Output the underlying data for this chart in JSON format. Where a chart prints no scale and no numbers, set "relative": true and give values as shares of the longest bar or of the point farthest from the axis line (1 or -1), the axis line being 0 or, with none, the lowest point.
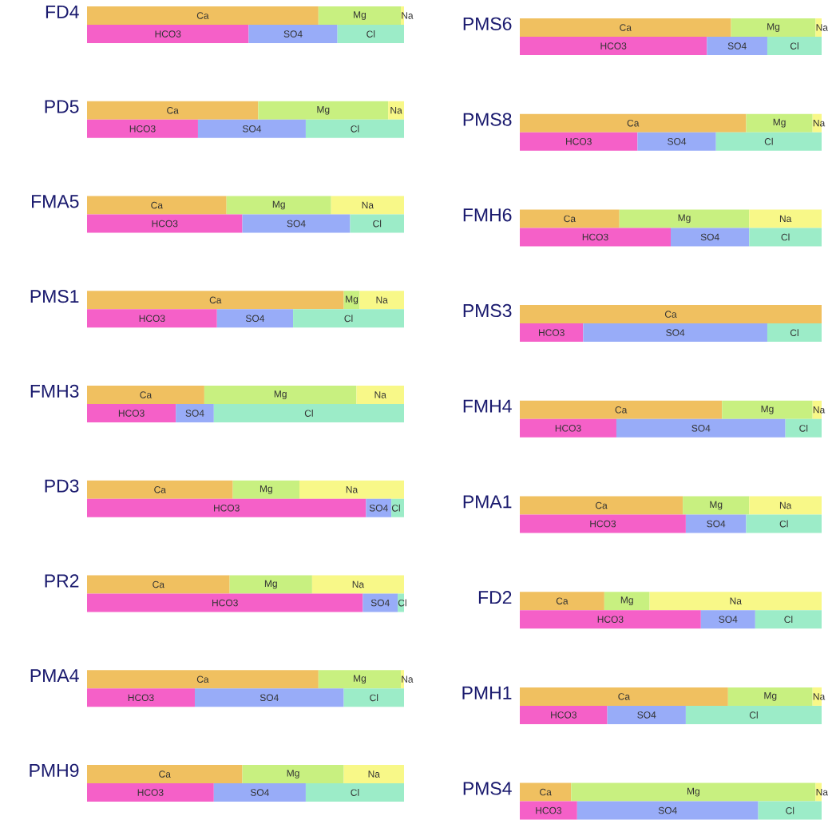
{
  "chart_data": [
    {
      "type": "bar",
      "orientation": "horizontal",
      "stacked": true,
      "relative": true,
      "title": "FD4",
      "categories": [
        null,
        null
      ],
      "series": [
        {
          "name": "Ca",
          "color": "#f0c060",
          "values": [
            0.73,
            null
          ]
        },
        {
          "name": "Mg",
          "color": "#c8f080",
          "values": [
            0.26,
            null
          ]
        },
        {
          "name": "Na",
          "color": "#f8f888",
          "values": [
            0.01,
            null
          ]
        },
        {
          "name": "HCO3",
          "color": "#f560c8",
          "values": [
            null,
            0.51
          ]
        },
        {
          "name": "SO4",
          "color": "#98acf8",
          "values": [
            null,
            0.28
          ]
        },
        {
          "name": "Cl",
          "color": "#9cecc8",
          "values": [
            null,
            0.21
          ]
        }
      ]
    },
    {
      "type": "bar",
      "orientation": "horizontal",
      "stacked": true,
      "relative": true,
      "title": "PMS6",
      "categories": [
        null,
        null
      ],
      "series": [
        {
          "name": "Ca",
          "color": "#f0c060",
          "values": [
            0.7,
            null
          ]
        },
        {
          "name": "Mg",
          "color": "#c8f080",
          "values": [
            0.28,
            null
          ]
        },
        {
          "name": "Na",
          "color": "#f8f888",
          "values": [
            0.02,
            null
          ]
        },
        {
          "name": "HCO3",
          "color": "#f560c8",
          "values": [
            null,
            0.62
          ]
        },
        {
          "name": "SO4",
          "color": "#98acf8",
          "values": [
            null,
            0.2
          ]
        },
        {
          "name": "Cl",
          "color": "#9cecc8",
          "values": [
            null,
            0.18
          ]
        }
      ]
    },
    {
      "type": "bar",
      "orientation": "horizontal",
      "stacked": true,
      "relative": true,
      "title": "PD5",
      "categories": [
        null,
        null
      ],
      "series": [
        {
          "name": "Ca",
          "color": "#f0c060",
          "values": [
            0.54,
            null
          ]
        },
        {
          "name": "Mg",
          "color": "#c8f080",
          "values": [
            0.41,
            null
          ]
        },
        {
          "name": "Na",
          "color": "#f8f888",
          "values": [
            0.05,
            null
          ]
        },
        {
          "name": "HCO3",
          "color": "#f560c8",
          "values": [
            null,
            0.35
          ]
        },
        {
          "name": "SO4",
          "color": "#98acf8",
          "values": [
            null,
            0.34
          ]
        },
        {
          "name": "Cl",
          "color": "#9cecc8",
          "values": [
            null,
            0.31
          ]
        }
      ]
    },
    {
      "type": "bar",
      "orientation": "horizontal",
      "stacked": true,
      "relative": true,
      "title": "PMS8",
      "categories": [
        null,
        null
      ],
      "series": [
        {
          "name": "Ca",
          "color": "#f0c060",
          "values": [
            0.75,
            null
          ]
        },
        {
          "name": "Mg",
          "color": "#c8f080",
          "values": [
            0.22,
            null
          ]
        },
        {
          "name": "Na",
          "color": "#f8f888",
          "values": [
            0.03,
            null
          ]
        },
        {
          "name": "HCO3",
          "color": "#f560c8",
          "values": [
            null,
            0.39
          ]
        },
        {
          "name": "SO4",
          "color": "#98acf8",
          "values": [
            null,
            0.26
          ]
        },
        {
          "name": "Cl",
          "color": "#9cecc8",
          "values": [
            null,
            0.35
          ]
        }
      ]
    },
    {
      "type": "bar",
      "orientation": "horizontal",
      "stacked": true,
      "relative": true,
      "title": "FMA5",
      "categories": [
        null,
        null
      ],
      "series": [
        {
          "name": "Ca",
          "color": "#f0c060",
          "values": [
            0.44,
            null
          ]
        },
        {
          "name": "Mg",
          "color": "#c8f080",
          "values": [
            0.33,
            null
          ]
        },
        {
          "name": "Na",
          "color": "#f8f888",
          "values": [
            0.23,
            null
          ]
        },
        {
          "name": "HCO3",
          "color": "#f560c8",
          "values": [
            null,
            0.49
          ]
        },
        {
          "name": "SO4",
          "color": "#98acf8",
          "values": [
            null,
            0.34
          ]
        },
        {
          "name": "Cl",
          "color": "#9cecc8",
          "values": [
            null,
            0.17
          ]
        }
      ]
    },
    {
      "type": "bar",
      "orientation": "horizontal",
      "stacked": true,
      "relative": true,
      "title": "FMH6",
      "categories": [
        null,
        null
      ],
      "series": [
        {
          "name": "Ca",
          "color": "#f0c060",
          "values": [
            0.33,
            null
          ]
        },
        {
          "name": "Mg",
          "color": "#c8f080",
          "values": [
            0.43,
            null
          ]
        },
        {
          "name": "Na",
          "color": "#f8f888",
          "values": [
            0.24,
            null
          ]
        },
        {
          "name": "HCO3",
          "color": "#f560c8",
          "values": [
            null,
            0.5
          ]
        },
        {
          "name": "SO4",
          "color": "#98acf8",
          "values": [
            null,
            0.26
          ]
        },
        {
          "name": "Cl",
          "color": "#9cecc8",
          "values": [
            null,
            0.24
          ]
        }
      ]
    },
    {
      "type": "bar",
      "orientation": "horizontal",
      "stacked": true,
      "relative": true,
      "title": "PMS1",
      "categories": [
        null,
        null
      ],
      "series": [
        {
          "name": "Ca",
          "color": "#f0c060",
          "values": [
            0.81,
            null
          ]
        },
        {
          "name": "Mg",
          "color": "#c8f080",
          "values": [
            0.05,
            null
          ]
        },
        {
          "name": "Na",
          "color": "#f8f888",
          "values": [
            0.14,
            null
          ]
        },
        {
          "name": "HCO3",
          "color": "#f560c8",
          "values": [
            null,
            0.41
          ]
        },
        {
          "name": "SO4",
          "color": "#98acf8",
          "values": [
            null,
            0.24
          ]
        },
        {
          "name": "Cl",
          "color": "#9cecc8",
          "values": [
            null,
            0.35
          ]
        }
      ]
    },
    {
      "type": "bar",
      "orientation": "horizontal",
      "stacked": true,
      "relative": true,
      "title": "PMS3",
      "categories": [
        null,
        null
      ],
      "series": [
        {
          "name": "Ca",
          "color": "#f0c060",
          "values": [
            1.0,
            null
          ]
        },
        {
          "name": "HCO3",
          "color": "#f560c8",
          "values": [
            null,
            0.21
          ]
        },
        {
          "name": "SO4",
          "color": "#98acf8",
          "values": [
            null,
            0.61
          ]
        },
        {
          "name": "Cl",
          "color": "#9cecc8",
          "values": [
            null,
            0.18
          ]
        }
      ]
    },
    {
      "type": "bar",
      "orientation": "horizontal",
      "stacked": true,
      "relative": true,
      "title": "FMH3",
      "categories": [
        null,
        null
      ],
      "series": [
        {
          "name": "Ca",
          "color": "#f0c060",
          "values": [
            0.37,
            null
          ]
        },
        {
          "name": "Mg",
          "color": "#c8f080",
          "values": [
            0.48,
            null
          ]
        },
        {
          "name": "Na",
          "color": "#f8f888",
          "values": [
            0.15,
            null
          ]
        },
        {
          "name": "HCO3",
          "color": "#f560c8",
          "values": [
            null,
            0.28
          ]
        },
        {
          "name": "SO4",
          "color": "#98acf8",
          "values": [
            null,
            0.12
          ]
        },
        {
          "name": "Cl",
          "color": "#9cecc8",
          "values": [
            null,
            0.6
          ]
        }
      ]
    },
    {
      "type": "bar",
      "orientation": "horizontal",
      "stacked": true,
      "relative": true,
      "title": "FMH4",
      "categories": [
        null,
        null
      ],
      "series": [
        {
          "name": "Ca",
          "color": "#f0c060",
          "values": [
            0.67,
            null
          ]
        },
        {
          "name": "Mg",
          "color": "#c8f080",
          "values": [
            0.3,
            null
          ]
        },
        {
          "name": "Na",
          "color": "#f8f888",
          "values": [
            0.03,
            null
          ]
        },
        {
          "name": "HCO3",
          "color": "#f560c8",
          "values": [
            null,
            0.32
          ]
        },
        {
          "name": "SO4",
          "color": "#98acf8",
          "values": [
            null,
            0.56
          ]
        },
        {
          "name": "Cl",
          "color": "#9cecc8",
          "values": [
            null,
            0.12
          ]
        }
      ]
    },
    {
      "type": "bar",
      "orientation": "horizontal",
      "stacked": true,
      "relative": true,
      "title": "PD3",
      "categories": [
        null,
        null
      ],
      "series": [
        {
          "name": "Ca",
          "color": "#f0c060",
          "values": [
            0.46,
            null
          ]
        },
        {
          "name": "Mg",
          "color": "#c8f080",
          "values": [
            0.21,
            null
          ]
        },
        {
          "name": "Na",
          "color": "#f8f888",
          "values": [
            0.33,
            null
          ]
        },
        {
          "name": "HCO3",
          "color": "#f560c8",
          "values": [
            null,
            0.88
          ]
        },
        {
          "name": "SO4",
          "color": "#98acf8",
          "values": [
            null,
            0.08
          ]
        },
        {
          "name": "Cl",
          "color": "#9cecc8",
          "values": [
            null,
            0.04
          ]
        }
      ]
    },
    {
      "type": "bar",
      "orientation": "horizontal",
      "stacked": true,
      "relative": true,
      "title": "PMA1",
      "categories": [
        null,
        null
      ],
      "series": [
        {
          "name": "Ca",
          "color": "#f0c060",
          "values": [
            0.54,
            null
          ]
        },
        {
          "name": "Mg",
          "color": "#c8f080",
          "values": [
            0.22,
            null
          ]
        },
        {
          "name": "Na",
          "color": "#f8f888",
          "values": [
            0.24,
            null
          ]
        },
        {
          "name": "HCO3",
          "color": "#f560c8",
          "values": [
            null,
            0.55
          ]
        },
        {
          "name": "SO4",
          "color": "#98acf8",
          "values": [
            null,
            0.2
          ]
        },
        {
          "name": "Cl",
          "color": "#9cecc8",
          "values": [
            null,
            0.25
          ]
        }
      ]
    },
    {
      "type": "bar",
      "orientation": "horizontal",
      "stacked": true,
      "relative": true,
      "title": "PR2",
      "categories": [
        null,
        null
      ],
      "series": [
        {
          "name": "Ca",
          "color": "#f0c060",
          "values": [
            0.45,
            null
          ]
        },
        {
          "name": "Mg",
          "color": "#c8f080",
          "values": [
            0.26,
            null
          ]
        },
        {
          "name": "Na",
          "color": "#f8f888",
          "values": [
            0.29,
            null
          ]
        },
        {
          "name": "HCO3",
          "color": "#f560c8",
          "values": [
            null,
            0.87
          ]
        },
        {
          "name": "SO4",
          "color": "#98acf8",
          "values": [
            null,
            0.11
          ]
        },
        {
          "name": "Cl",
          "color": "#9cecc8",
          "values": [
            null,
            0.02
          ]
        }
      ]
    },
    {
      "type": "bar",
      "orientation": "horizontal",
      "stacked": true,
      "relative": true,
      "title": "FD2",
      "categories": [
        null,
        null
      ],
      "series": [
        {
          "name": "Ca",
          "color": "#f0c060",
          "values": [
            0.28,
            null
          ]
        },
        {
          "name": "Mg",
          "color": "#c8f080",
          "values": [
            0.15,
            null
          ]
        },
        {
          "name": "Na",
          "color": "#f8f888",
          "values": [
            0.57,
            null
          ]
        },
        {
          "name": "HCO3",
          "color": "#f560c8",
          "values": [
            null,
            0.6
          ]
        },
        {
          "name": "SO4",
          "color": "#98acf8",
          "values": [
            null,
            0.18
          ]
        },
        {
          "name": "Cl",
          "color": "#9cecc8",
          "values": [
            null,
            0.22
          ]
        }
      ]
    },
    {
      "type": "bar",
      "orientation": "horizontal",
      "stacked": true,
      "relative": true,
      "title": "PMA4",
      "categories": [
        null,
        null
      ],
      "series": [
        {
          "name": "Ca",
          "color": "#f0c060",
          "values": [
            0.73,
            null
          ]
        },
        {
          "name": "Mg",
          "color": "#c8f080",
          "values": [
            0.26,
            null
          ]
        },
        {
          "name": "Na",
          "color": "#f8f888",
          "values": [
            0.01,
            null
          ]
        },
        {
          "name": "HCO3",
          "color": "#f560c8",
          "values": [
            null,
            0.34
          ]
        },
        {
          "name": "SO4",
          "color": "#98acf8",
          "values": [
            null,
            0.47
          ]
        },
        {
          "name": "Cl",
          "color": "#9cecc8",
          "values": [
            null,
            0.19
          ]
        }
      ]
    },
    {
      "type": "bar",
      "orientation": "horizontal",
      "stacked": true,
      "relative": true,
      "title": "PMH1",
      "categories": [
        null,
        null
      ],
      "series": [
        {
          "name": "Ca",
          "color": "#f0c060",
          "values": [
            0.69,
            null
          ]
        },
        {
          "name": "Mg",
          "color": "#c8f080",
          "values": [
            0.28,
            null
          ]
        },
        {
          "name": "Na",
          "color": "#f8f888",
          "values": [
            0.03,
            null
          ]
        },
        {
          "name": "HCO3",
          "color": "#f560c8",
          "values": [
            null,
            0.29
          ]
        },
        {
          "name": "SO4",
          "color": "#98acf8",
          "values": [
            null,
            0.26
          ]
        },
        {
          "name": "Cl",
          "color": "#9cecc8",
          "values": [
            null,
            0.45
          ]
        }
      ]
    },
    {
      "type": "bar",
      "orientation": "horizontal",
      "stacked": true,
      "relative": true,
      "title": "PMH9",
      "categories": [
        null,
        null
      ],
      "series": [
        {
          "name": "Ca",
          "color": "#f0c060",
          "values": [
            0.49,
            null
          ]
        },
        {
          "name": "Mg",
          "color": "#c8f080",
          "values": [
            0.32,
            null
          ]
        },
        {
          "name": "Na",
          "color": "#f8f888",
          "values": [
            0.19,
            null
          ]
        },
        {
          "name": "HCO3",
          "color": "#f560c8",
          "values": [
            null,
            0.4
          ]
        },
        {
          "name": "SO4",
          "color": "#98acf8",
          "values": [
            null,
            0.29
          ]
        },
        {
          "name": "Cl",
          "color": "#9cecc8",
          "values": [
            null,
            0.31
          ]
        }
      ]
    },
    {
      "type": "bar",
      "orientation": "horizontal",
      "stacked": true,
      "relative": true,
      "title": "PMS4",
      "categories": [
        null,
        null
      ],
      "series": [
        {
          "name": "Ca",
          "color": "#f0c060",
          "values": [
            0.17,
            null
          ]
        },
        {
          "name": "Mg",
          "color": "#c8f080",
          "values": [
            0.81,
            null
          ]
        },
        {
          "name": "Na",
          "color": "#f8f888",
          "values": [
            0.02,
            null
          ]
        },
        {
          "name": "HCO3",
          "color": "#f560c8",
          "values": [
            null,
            0.19
          ]
        },
        {
          "name": "SO4",
          "color": "#98acf8",
          "values": [
            null,
            0.6
          ]
        },
        {
          "name": "Cl",
          "color": "#9cecc8",
          "values": [
            null,
            0.21
          ]
        }
      ]
    }
  ]
}
